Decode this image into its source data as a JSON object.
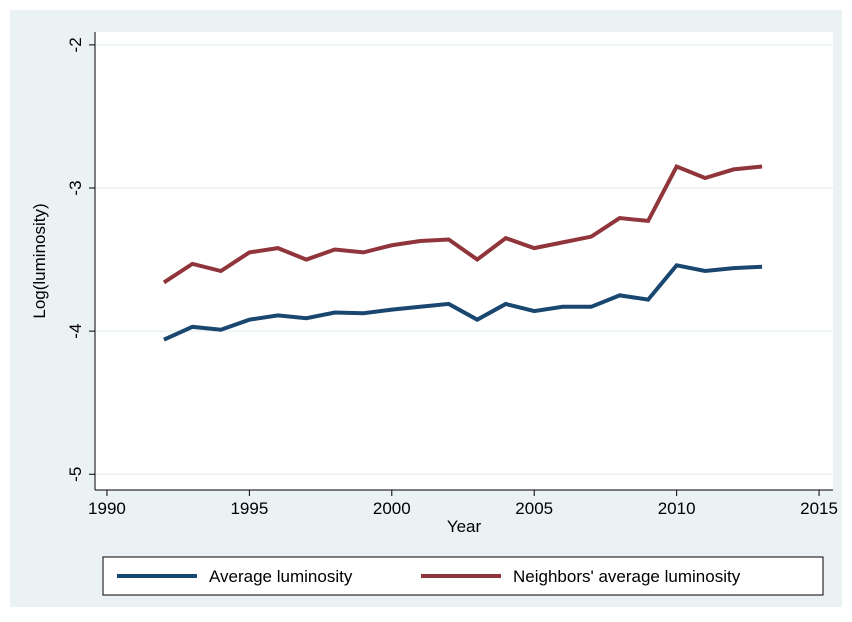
{
  "chart_data": {
    "type": "line",
    "x_label": "Year",
    "y_label": "Log(luminosity)",
    "x": [
      1992,
      1993,
      1994,
      1995,
      1996,
      1997,
      1998,
      1999,
      2000,
      2001,
      2002,
      2003,
      2004,
      2005,
      2006,
      2007,
      2008,
      2009,
      2010,
      2011,
      2012,
      2013
    ],
    "series": [
      {
        "name": "Average luminosity",
        "color": "#1a476f",
        "values": [
          -4.06,
          -3.97,
          -3.99,
          -3.92,
          -3.89,
          -3.91,
          -3.87,
          -3.875,
          -3.85,
          -3.83,
          -3.81,
          -3.92,
          -3.81,
          -3.86,
          -3.83,
          -3.83,
          -3.75,
          -3.78,
          -3.54,
          -3.58,
          -3.56,
          -3.55
        ]
      },
      {
        "name": "Neighbors' average luminosity",
        "color": "#90353b",
        "values": [
          -3.66,
          -3.53,
          -3.58,
          -3.45,
          -3.42,
          -3.5,
          -3.43,
          -3.45,
          -3.4,
          -3.37,
          -3.36,
          -3.5,
          -3.35,
          -3.42,
          -3.38,
          -3.34,
          -3.21,
          -3.23,
          -2.85,
          -2.93,
          -2.87,
          -2.85
        ]
      }
    ],
    "xlim": [
      1989.58,
      2015.49
    ],
    "xticks": [
      1990,
      1995,
      2000,
      2005,
      2010,
      2015
    ],
    "ylim": [
      -5.11,
      -1.91
    ],
    "yticks": [
      -5,
      -4,
      -3,
      -2
    ],
    "grid": true,
    "legend": "bottom"
  }
}
